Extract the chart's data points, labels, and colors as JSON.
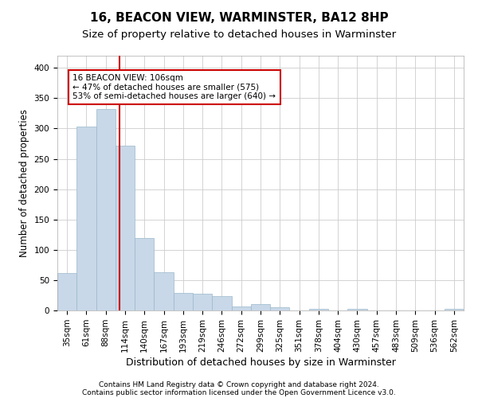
{
  "title_line1": "16, BEACON VIEW, WARMINSTER, BA12 8HP",
  "title_line2": "Size of property relative to detached houses in Warminster",
  "xlabel": "Distribution of detached houses by size in Warminster",
  "ylabel": "Number of detached properties",
  "footer_line1": "Contains HM Land Registry data © Crown copyright and database right 2024.",
  "footer_line2": "Contains public sector information licensed under the Open Government Licence v3.0.",
  "categories": [
    "35sqm",
    "61sqm",
    "88sqm",
    "114sqm",
    "140sqm",
    "167sqm",
    "193sqm",
    "219sqm",
    "246sqm",
    "272sqm",
    "299sqm",
    "325sqm",
    "351sqm",
    "378sqm",
    "404sqm",
    "430sqm",
    "457sqm",
    "483sqm",
    "509sqm",
    "536sqm",
    "562sqm"
  ],
  "values": [
    62,
    303,
    332,
    272,
    120,
    63,
    29,
    27,
    24,
    7,
    10,
    5,
    0,
    3,
    0,
    3,
    0,
    0,
    0,
    0,
    3
  ],
  "bar_color": "#c8d8e8",
  "bar_edgecolor": "#9ab8cc",
  "vline_x": 2.72,
  "vline_color": "#cc0000",
  "annotation_text": "16 BEACON VIEW: 106sqm\n← 47% of detached houses are smaller (575)\n53% of semi-detached houses are larger (640) →",
  "annotation_box_edgecolor": "#cc0000",
  "annotation_box_facecolor": "white",
  "ylim": [
    0,
    420
  ],
  "yticks": [
    0,
    50,
    100,
    150,
    200,
    250,
    300,
    350,
    400
  ],
  "grid_color": "#cccccc",
  "background_color": "white",
  "title_fontsize": 11,
  "subtitle_fontsize": 9.5,
  "tick_fontsize": 7.5,
  "xlabel_fontsize": 9,
  "ylabel_fontsize": 8.5,
  "footer_fontsize": 6.5
}
